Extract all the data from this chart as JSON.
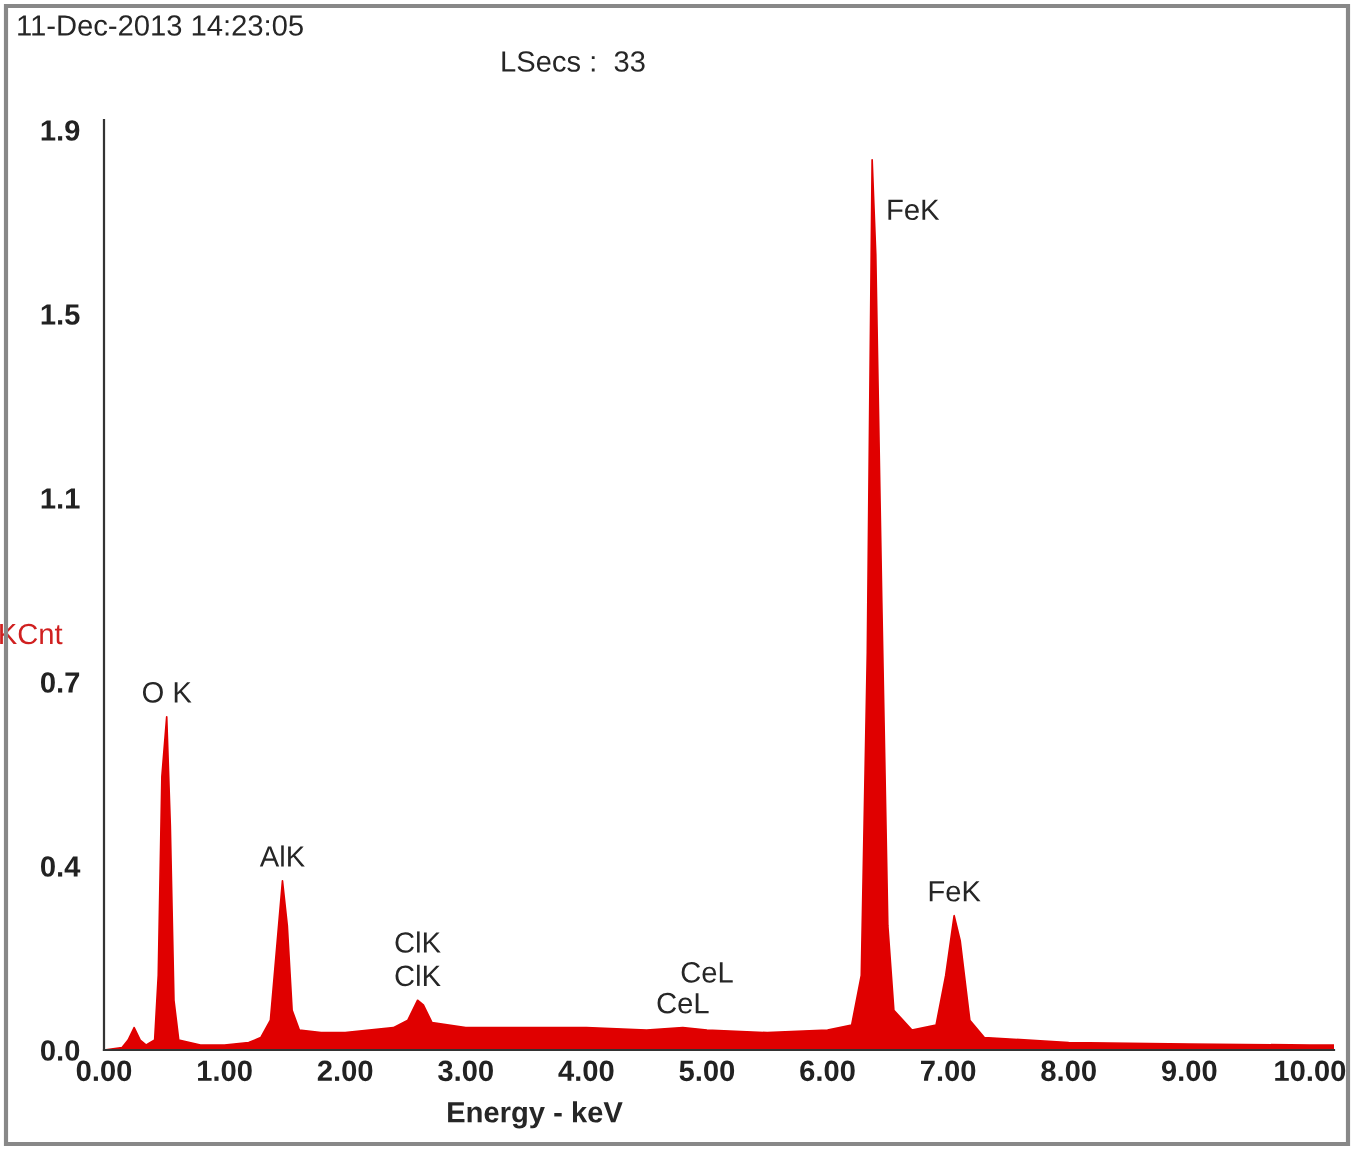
{
  "chart_data": {
    "type": "area",
    "xlabel": "Energy - keV",
    "ylabel": "KCnt",
    "xlim": [
      0,
      10.2
    ],
    "ylim": [
      0,
      1.87
    ],
    "xticks": [
      {
        "value": 0,
        "label": "0.00"
      },
      {
        "value": 1,
        "label": "1.00"
      },
      {
        "value": 2,
        "label": "2.00"
      },
      {
        "value": 3,
        "label": "3.00"
      },
      {
        "value": 4,
        "label": "4.00"
      },
      {
        "value": 5,
        "label": "5.00"
      },
      {
        "value": 6,
        "label": "6.00"
      },
      {
        "value": 7,
        "label": "7.00"
      },
      {
        "value": 8,
        "label": "8.00"
      },
      {
        "value": 9,
        "label": "9.00"
      },
      {
        "value": 10,
        "label": "10.00"
      }
    ],
    "yticks": [
      {
        "value": 0,
        "label": "0.0"
      },
      {
        "value": 0.37,
        "label": "0.4"
      },
      {
        "value": 0.74,
        "label": "0.7"
      },
      {
        "value": 1.11,
        "label": "1.1"
      },
      {
        "value": 1.48,
        "label": "1.5"
      },
      {
        "value": 1.85,
        "label": "1.9"
      }
    ],
    "grid": false,
    "legend": false,
    "series": [
      {
        "color": "#e00000",
        "x": [
          0.0,
          0.15,
          0.2,
          0.25,
          0.3,
          0.35,
          0.42,
          0.45,
          0.48,
          0.52,
          0.55,
          0.58,
          0.62,
          0.8,
          1.0,
          1.2,
          1.3,
          1.38,
          1.43,
          1.48,
          1.52,
          1.56,
          1.62,
          1.8,
          2.0,
          2.2,
          2.4,
          2.52,
          2.6,
          2.65,
          2.72,
          3.0,
          3.5,
          4.0,
          4.5,
          4.8,
          5.0,
          5.5,
          6.0,
          6.2,
          6.28,
          6.33,
          6.37,
          6.4,
          6.45,
          6.5,
          6.55,
          6.7,
          6.9,
          6.98,
          7.05,
          7.1,
          7.18,
          7.3,
          8.0,
          9.0,
          10.0,
          10.2
        ],
        "values": [
          0,
          0.005,
          0.02,
          0.045,
          0.02,
          0.01,
          0.02,
          0.15,
          0.55,
          0.67,
          0.45,
          0.1,
          0.02,
          0.01,
          0.01,
          0.015,
          0.025,
          0.06,
          0.2,
          0.34,
          0.25,
          0.08,
          0.04,
          0.035,
          0.035,
          0.04,
          0.045,
          0.06,
          0.1,
          0.09,
          0.055,
          0.045,
          0.045,
          0.045,
          0.04,
          0.045,
          0.04,
          0.035,
          0.04,
          0.05,
          0.15,
          0.8,
          1.79,
          1.6,
          0.9,
          0.25,
          0.08,
          0.04,
          0.05,
          0.15,
          0.27,
          0.22,
          0.06,
          0.025,
          0.015,
          0.012,
          0.01,
          0.01
        ]
      }
    ],
    "annotations": [
      "11-Dec-2013 14:23:05",
      "LSecs :  33",
      {
        "text": "FeK",
        "x": 6.37,
        "y": 1.79
      },
      {
        "text": "O K",
        "x": 0.52,
        "y": 0.67
      },
      {
        "text": "AlK",
        "x": 1.48,
        "y": 0.34
      },
      {
        "text": "ClK",
        "x": 2.6,
        "y": 0.1
      },
      {
        "text": "ClK",
        "x": 2.6,
        "y": 0.1
      },
      {
        "text": "CeL",
        "x": 4.8,
        "y": 0.045
      },
      {
        "text": "CeL",
        "x": 5.0,
        "y": 0.04
      },
      {
        "text": "FeK",
        "x": 7.05,
        "y": 0.27
      }
    ]
  }
}
